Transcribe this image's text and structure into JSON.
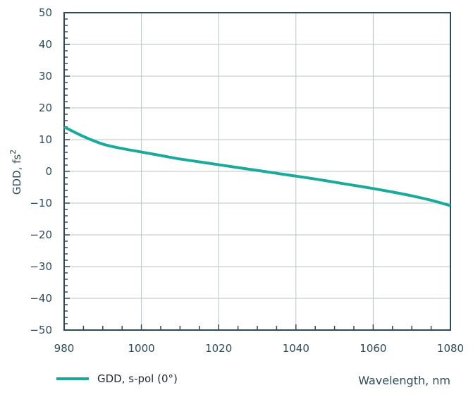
{
  "chart_data": {
    "type": "line",
    "title": "",
    "xlabel": "Wavelength, nm",
    "ylabel": "GDD, fs",
    "ylabel_sup": "2",
    "xlim": [
      980,
      1080
    ],
    "ylim": [
      -50,
      50
    ],
    "x_ticks": [
      980,
      1000,
      1020,
      1040,
      1060,
      1080
    ],
    "y_ticks": [
      50,
      40,
      30,
      20,
      10,
      0,
      -10,
      -20,
      -30,
      -40,
      -50
    ],
    "y_tick_labels": [
      "50",
      "40",
      "30",
      "20",
      "10",
      "0",
      "−10",
      "−20",
      "−30",
      "−40",
      "−50"
    ],
    "grid": true,
    "legend_position": "bottom-left",
    "series": [
      {
        "name": "GDD, s-pol (0°)",
        "color": "#1aaa9c",
        "x": [
          980,
          985,
          990,
          995,
          1000,
          1005,
          1010,
          1015,
          1020,
          1025,
          1030,
          1035,
          1040,
          1045,
          1050,
          1055,
          1060,
          1065,
          1070,
          1075,
          1080
        ],
        "y": [
          14,
          11,
          8.6,
          7.2,
          6.1,
          5.0,
          3.9,
          3.0,
          2.1,
          1.2,
          0.3,
          -0.6,
          -1.5,
          -2.4,
          -3.4,
          -4.4,
          -5.4,
          -6.5,
          -7.7,
          -9.1,
          -10.8
        ]
      }
    ]
  }
}
